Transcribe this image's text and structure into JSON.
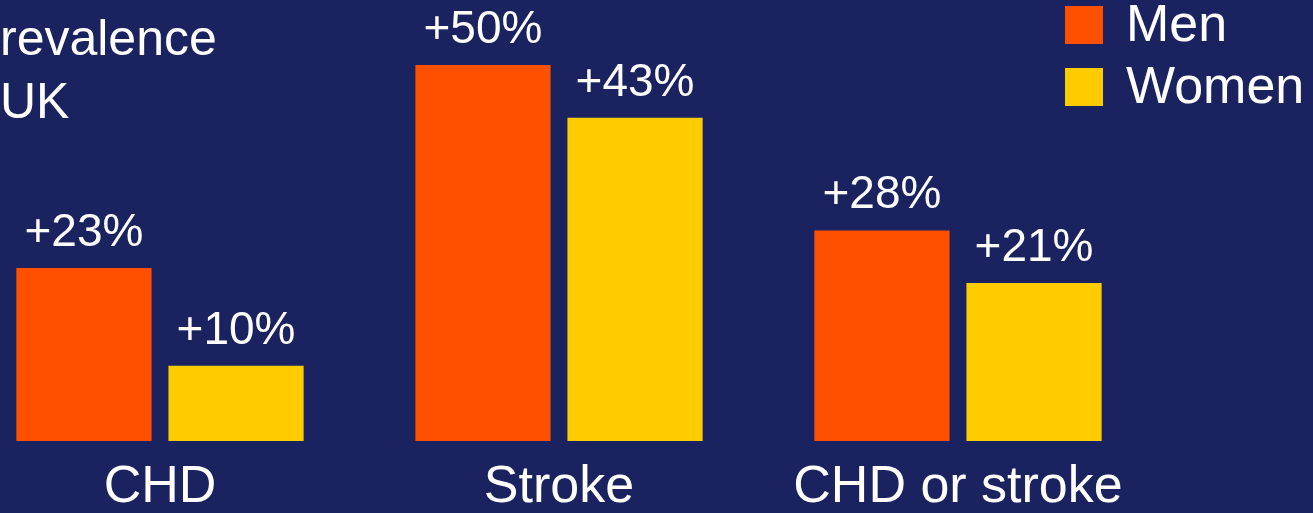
{
  "chart_data": {
    "type": "bar",
    "title": "revalence\nUK",
    "categories": [
      "CHD",
      "Stroke",
      "CHD or stroke"
    ],
    "series": [
      {
        "name": "Men",
        "color": "#ff5000",
        "values": [
          23,
          50,
          28
        ],
        "value_labels": [
          "+23%",
          "+50%",
          "+28%"
        ]
      },
      {
        "name": "Women",
        "color": "#ffcc00",
        "values": [
          10,
          43,
          21
        ],
        "value_labels": [
          "+10%",
          "+43%",
          "+21%"
        ]
      }
    ],
    "legend": "top right"
  }
}
